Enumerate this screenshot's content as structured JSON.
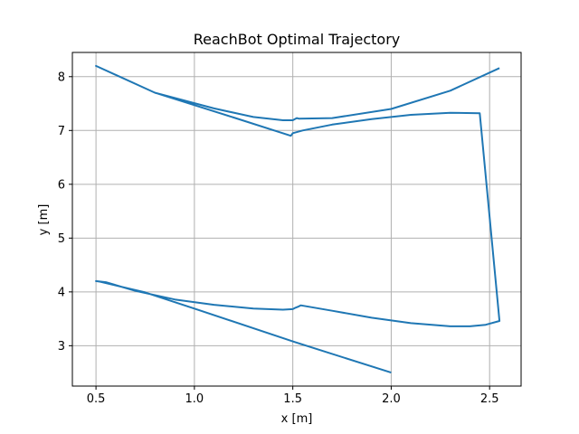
{
  "chart_data": {
    "type": "line",
    "title": "ReachBot Optimal Trajectory",
    "xlabel": "x [m]",
    "ylabel": "y [m]",
    "xlim": [
      0.38,
      2.66
    ],
    "ylim": [
      2.25,
      8.45
    ],
    "xticks": [
      0.5,
      1.0,
      1.5,
      2.0,
      2.5
    ],
    "yticks": [
      3,
      4,
      5,
      6,
      7,
      8
    ],
    "xtick_labels": [
      "0.5",
      "1.0",
      "1.5",
      "2.0",
      "2.5"
    ],
    "ytick_labels": [
      "3",
      "4",
      "5",
      "6",
      "7",
      "8"
    ],
    "grid": true,
    "color": "#1f77b4",
    "series": [
      {
        "x": [
          2.0,
          1.5,
          1.0,
          0.75,
          0.6,
          0.52,
          0.5,
          0.55,
          0.7,
          0.9,
          1.1,
          1.3,
          1.45,
          1.5,
          1.51,
          1.53,
          1.54,
          1.7,
          1.9,
          2.1,
          2.3,
          2.4,
          2.48,
          2.55,
          2.45,
          2.3,
          2.1,
          1.9,
          1.7,
          1.55,
          1.5,
          1.49,
          1.2,
          0.8,
          0.5,
          0.8,
          1.1,
          1.3,
          1.45,
          1.5,
          1.52,
          1.53,
          1.7,
          2.0,
          2.3,
          2.55
        ],
        "y": [
          2.5,
          3.08,
          3.69,
          3.99,
          4.12,
          4.19,
          4.2,
          4.18,
          4.02,
          3.86,
          3.76,
          3.69,
          3.67,
          3.68,
          3.7,
          3.73,
          3.75,
          3.65,
          3.52,
          3.42,
          3.36,
          3.36,
          3.39,
          3.46,
          7.32,
          7.33,
          7.29,
          7.21,
          7.11,
          7.0,
          6.95,
          6.9,
          7.24,
          7.7,
          8.2,
          7.7,
          7.41,
          7.25,
          7.19,
          7.19,
          7.23,
          7.22,
          7.23,
          7.4,
          7.74,
          8.16
        ]
      }
    ]
  }
}
